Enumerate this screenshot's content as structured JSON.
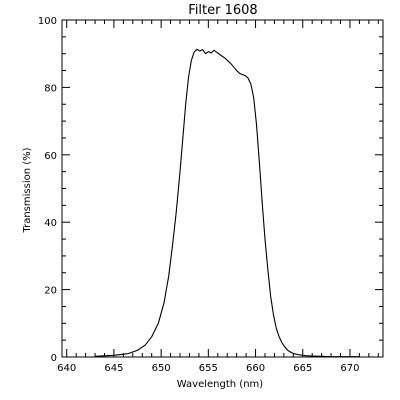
{
  "chart_data": {
    "type": "line",
    "title": "Filter 1608",
    "xlabel": "Wavelength (nm)",
    "ylabel": "Transmission (%)",
    "xlim": [
      639.5,
      673.5
    ],
    "ylim": [
      0,
      100
    ],
    "grid": false,
    "x_major_ticks": [
      640,
      645,
      650,
      655,
      660,
      665,
      670
    ],
    "x_tick_labels": [
      "640",
      "645",
      "650",
      "655",
      "660",
      "665",
      "670"
    ],
    "x_minor_step": 1,
    "y_major_ticks": [
      0,
      20,
      40,
      60,
      80,
      100
    ],
    "y_tick_labels": [
      "0",
      "20",
      "40",
      "60",
      "80",
      "100"
    ],
    "y_minor_step": 5,
    "series": [
      {
        "line_color": "#000000",
        "x": [
          643.0,
          645.0,
          646.5,
          647.5,
          648.3,
          649.0,
          649.7,
          650.3,
          650.8,
          651.2,
          651.6,
          652.0,
          652.3,
          652.6,
          652.9,
          653.2,
          653.5,
          653.8,
          654.1,
          654.4,
          654.7,
          655.0,
          655.3,
          655.6,
          655.9,
          656.2,
          656.5,
          656.8,
          657.1,
          657.4,
          657.7,
          658.0,
          658.3,
          658.6,
          658.9,
          659.2,
          659.5,
          659.8,
          660.1,
          660.4,
          660.7,
          661.0,
          661.3,
          661.6,
          661.9,
          662.2,
          662.5,
          662.8,
          663.1,
          663.4,
          663.8,
          664.2,
          664.7,
          665.3,
          666.0,
          667.0,
          668.0,
          669.0,
          670.0,
          671.0
        ],
        "y": [
          0.2,
          0.5,
          1.0,
          2.0,
          3.5,
          6.0,
          10.0,
          16.0,
          24.0,
          33.0,
          43.0,
          55.0,
          65.0,
          75.0,
          83.0,
          88.0,
          90.5,
          91.3,
          90.8,
          91.2,
          90.0,
          90.6,
          90.2,
          91.0,
          90.4,
          89.8,
          89.2,
          88.6,
          87.8,
          87.0,
          86.0,
          85.0,
          84.2,
          83.8,
          83.5,
          82.8,
          81.0,
          77.0,
          69.0,
          58.0,
          46.0,
          35.0,
          26.0,
          18.0,
          12.5,
          8.5,
          6.0,
          4.2,
          3.0,
          2.0,
          1.3,
          0.9,
          0.6,
          0.4,
          0.3,
          0.2,
          0.1,
          0.1,
          0.1,
          0.1
        ]
      }
    ]
  }
}
